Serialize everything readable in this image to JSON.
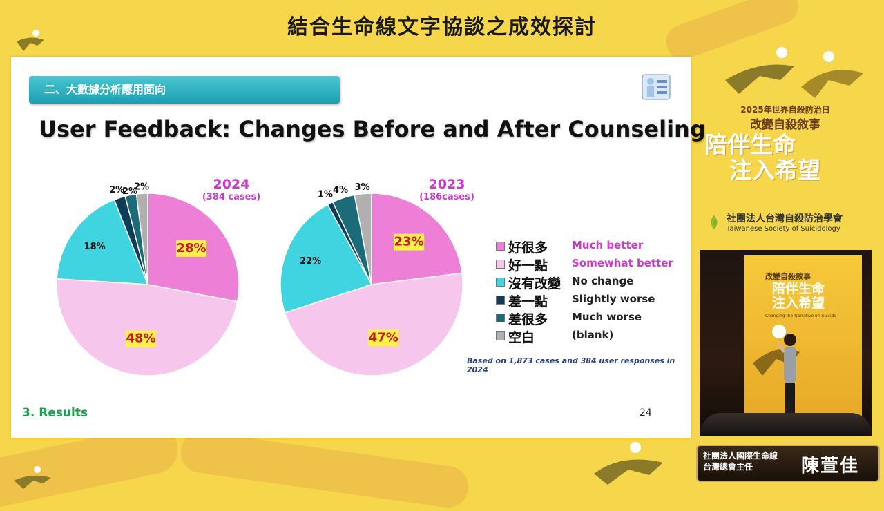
{
  "event_title": "結合生命線文字協談之成效探討",
  "slide": {
    "section_label": "二、大數據分析應用面向",
    "headline": "User Feedback: Changes Before and After Counseling",
    "footer_section": "3. Results",
    "page_number": "24",
    "note": "Based on 1,873 cases and 384 user responses in 2024"
  },
  "legend": [
    {
      "zh": "好很多",
      "en": "Much better",
      "color": "#ee7fd6",
      "en_color": "#c93ac9"
    },
    {
      "zh": "好一點",
      "en": "Somewhat better",
      "color": "#f7c6ec",
      "en_color": "#c93ac9"
    },
    {
      "zh": "沒有改變",
      "en": "No change",
      "color": "#3fd4e0",
      "en_color": "#222222"
    },
    {
      "zh": "差一點",
      "en": "Slightly worse",
      "color": "#0e3d5a",
      "en_color": "#222222"
    },
    {
      "zh": "差很多",
      "en": "Much worse",
      "color": "#1c6b78",
      "en_color": "#222222"
    },
    {
      "zh": "空白",
      "en": "(blank)",
      "color": "#b0b0b0",
      "en_color": "#222222"
    }
  ],
  "chart_data": [
    {
      "type": "pie",
      "title": "2024",
      "subtitle": "(384 cases)",
      "labels": [
        "好很多",
        "好一點",
        "沒有改變",
        "差一點",
        "差很多",
        "空白"
      ],
      "values": [
        28,
        48,
        18,
        2,
        2,
        2
      ],
      "value_labels": [
        "28%",
        "48%",
        "18%",
        "2%",
        "2%",
        "2%"
      ]
    },
    {
      "type": "pie",
      "title": "2023",
      "subtitle": "(186cases)",
      "labels": [
        "好很多",
        "好一點",
        "沒有改變",
        "差一點",
        "差很多",
        "空白"
      ],
      "values": [
        23,
        47,
        22,
        1,
        4,
        3
      ],
      "value_labels": [
        "23%",
        "47%",
        "22%",
        "1%",
        "4%",
        "3%"
      ]
    }
  ],
  "sidebar": {
    "campaign_line1": "2025年世界自殺防治日",
    "campaign_line2": "改變自殺敘事",
    "slogan_line1": "陪伴生命",
    "slogan_line2": "注入希望",
    "org_zh": "社團法人台灣自殺防治學會",
    "org_en": "Taiwanese Society of Suicidology"
  },
  "video": {
    "banner_line1": "改變自殺敘事",
    "banner_line2": "陪伴生命",
    "banner_line3": "注入希望",
    "banner_en": "Changing the Narrative on Suicide"
  },
  "speaker": {
    "title_line1": "社團法人國際生命線",
    "title_line2": "台灣總會主任",
    "name": "陳萱佳"
  }
}
